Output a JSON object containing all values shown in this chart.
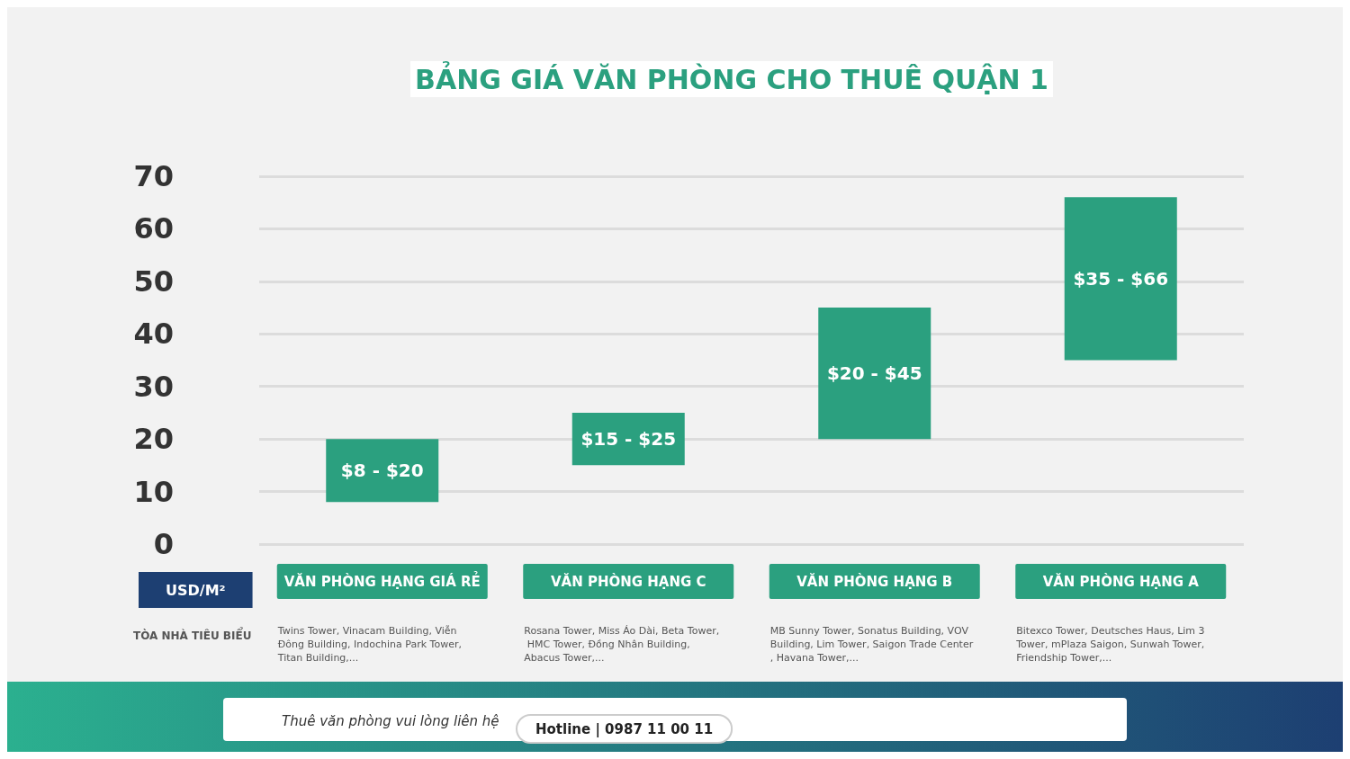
{
  "chart_data": {
    "type": "bar",
    "title": "BẢNG GIÁ VĂN PHÒNG CHO THUÊ QUẬN 1",
    "ylabel": "USD/M²",
    "categories": [
      "VĂN PHÒNG HẠNG GIÁ RẺ",
      "VĂN PHÒNG HẠNG C",
      "VĂN PHÒNG HẠNG B",
      "VĂN PHÒNG HẠNG A"
    ],
    "base": [
      8,
      15,
      20,
      35
    ],
    "values": [
      12,
      10,
      25,
      31
    ],
    "color": "#2ba07f",
    "ylim": [
      0,
      70
    ],
    "yticks": [
      0,
      10,
      20,
      30,
      40,
      50,
      60,
      70
    ],
    "grid": "y",
    "annotations": [
      "$8 - $20",
      "$15 - $25",
      "$20 - $45",
      "$35 - $66",
      "TÒA NHÀ TIÊU BIỂU",
      "Twins Tower, Vinacam Building, Viễn Đông Building, Indochina Park Tower, Titan Building,...",
      "Rosana Tower, Miss Áo Dài, Beta Tower, HMC Tower, Đồng Nhân Building, Abacus Tower,...",
      "MB Sunny Tower, Sonatus Building, VOV Building, Lim Tower, Saigon Trade Center, Havana Tower,...",
      "Bitexco Tower, Deutsches Haus, Lim 3 Tower, mPlaza Saigon, Sunwah Tower, Friendship Tower,...",
      "Thuê văn phòng vui lòng liên hệ",
      "Hotline | 0987 11 00 11"
    ]
  }
}
